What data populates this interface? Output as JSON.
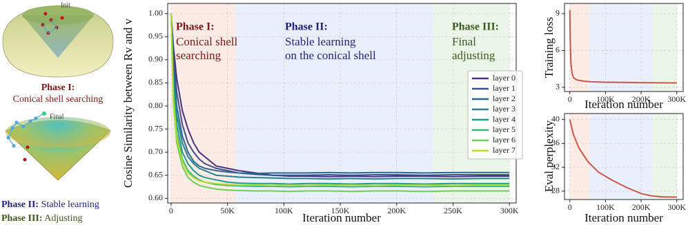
{
  "illustration": {
    "init": "Init",
    "final": "Final",
    "phase1_title": "Phase I:",
    "phase1_text": "Conical shell searching",
    "phase2_title": "Phase II:",
    "phase2_text": "Stable learning",
    "phase3_title": "Phase III:",
    "phase3_text": "Adjusting"
  },
  "chart_data": [
    {
      "type": "line",
      "xlabel": "Iteration number",
      "ylabel": "Cosine Similarity between Rv and v",
      "xlim": [
        -3000,
        306000
      ],
      "ylim": [
        0.59,
        1.022
      ],
      "xticks": [
        0,
        {
          "value": 50000,
          "label": "50K"
        },
        {
          "value": 100000,
          "label": "100K"
        },
        {
          "value": 150000,
          "label": "150K"
        },
        {
          "value": 200000,
          "label": "200K"
        },
        {
          "value": 250000,
          "label": "250K"
        },
        {
          "value": 300000,
          "label": "300K"
        }
      ],
      "yticks": [
        {
          "value": 0.6,
          "label": "0.60"
        },
        0.65,
        {
          "value": 0.7,
          "label": "0.70"
        },
        0.75,
        {
          "value": 0.8,
          "label": "0.80"
        },
        0.85,
        {
          "value": 0.9,
          "label": "0.90"
        },
        0.95,
        {
          "value": 1,
          "label": "1.00"
        }
      ],
      "grid": true,
      "legend": "center right",
      "phases": [
        {
          "title": "Phase I:",
          "lines": [
            "Conical shell",
            "searching"
          ],
          "xrange": [
            0,
            57000
          ],
          "color": "#fdebe6",
          "title_color": "#7a1616"
        },
        {
          "title": "Phase II:",
          "lines": [
            "Stable learning",
            "on the conical shell"
          ],
          "xrange": [
            57000,
            232000
          ],
          "color": "#eaf0fb",
          "title_color": "#1f1f78"
        },
        {
          "title": "Phase III:",
          "lines": [
            "Final",
            "adjusting"
          ],
          "xrange": [
            232000,
            300000
          ],
          "color": "#eaf6e8",
          "title_color": "#3d5a1c"
        }
      ],
      "x": [
        0,
        2000,
        5000,
        10000,
        15000,
        20000,
        25000,
        30000,
        40000,
        50000,
        60000,
        75000,
        90000,
        105000,
        120000,
        140000,
        160000,
        180000,
        200000,
        225000,
        250000,
        275000,
        300000
      ],
      "series": [
        {
          "name": "layer 0",
          "color": "#46327e",
          "values": [
            1.0,
            0.93,
            0.86,
            0.79,
            0.75,
            0.72,
            0.7,
            0.69,
            0.67,
            0.665,
            0.66,
            0.655,
            0.65,
            0.648,
            0.648,
            0.647,
            0.648,
            0.647,
            0.648,
            0.648,
            0.647,
            0.648,
            0.648
          ]
        },
        {
          "name": "layer 1",
          "color": "#3b4f8a",
          "values": [
            1.0,
            0.91,
            0.83,
            0.76,
            0.72,
            0.7,
            0.685,
            0.675,
            0.665,
            0.66,
            0.655,
            0.652,
            0.65,
            0.65,
            0.65,
            0.651,
            0.65,
            0.651,
            0.651,
            0.65,
            0.651,
            0.651,
            0.651
          ]
        },
        {
          "name": "layer 2",
          "color": "#2c688e",
          "values": [
            1.0,
            0.89,
            0.8,
            0.735,
            0.7,
            0.68,
            0.67,
            0.665,
            0.66,
            0.657,
            0.655,
            0.654,
            0.655,
            0.655,
            0.655,
            0.656,
            0.655,
            0.656,
            0.656,
            0.655,
            0.656,
            0.656,
            0.656
          ]
        },
        {
          "name": "layer 3",
          "color": "#25808e",
          "values": [
            1.0,
            0.87,
            0.78,
            0.72,
            0.69,
            0.675,
            0.665,
            0.66,
            0.65,
            0.648,
            0.646,
            0.645,
            0.644,
            0.643,
            0.643,
            0.642,
            0.643,
            0.642,
            0.643,
            0.643,
            0.642,
            0.643,
            0.643
          ]
        },
        {
          "name": "layer 4",
          "color": "#1f9a8a",
          "values": [
            1.0,
            0.85,
            0.76,
            0.7,
            0.675,
            0.66,
            0.65,
            0.645,
            0.64,
            0.635,
            0.633,
            0.632,
            0.632,
            0.631,
            0.632,
            0.632,
            0.631,
            0.632,
            0.632,
            0.631,
            0.632,
            0.632,
            0.632
          ]
        },
        {
          "name": "layer 5",
          "color": "#35b779",
          "values": [
            1.0,
            0.83,
            0.74,
            0.685,
            0.66,
            0.648,
            0.64,
            0.635,
            0.63,
            0.628,
            0.627,
            0.626,
            0.626,
            0.625,
            0.626,
            0.626,
            0.625,
            0.626,
            0.626,
            0.625,
            0.626,
            0.626,
            0.626
          ]
        },
        {
          "name": "layer 6",
          "color": "#6ece58",
          "values": [
            1.0,
            0.81,
            0.72,
            0.67,
            0.645,
            0.635,
            0.628,
            0.625,
            0.62,
            0.618,
            0.617,
            0.616,
            0.616,
            0.615,
            0.616,
            0.616,
            0.615,
            0.616,
            0.616,
            0.615,
            0.616,
            0.616,
            0.616
          ]
        },
        {
          "name": "layer 7",
          "color": "#b5de2b",
          "values": [
            1.0,
            0.82,
            0.73,
            0.68,
            0.655,
            0.645,
            0.638,
            0.635,
            0.632,
            0.63,
            0.629,
            0.629,
            0.628,
            0.629,
            0.628,
            0.629,
            0.629,
            0.628,
            0.629,
            0.629,
            0.628,
            0.629,
            0.629
          ]
        }
      ]
    },
    {
      "type": "line",
      "xlabel": "Iteration number",
      "ylabel": "Training loss",
      "xlim": [
        -15000,
        318000
      ],
      "ylim": [
        2.66,
        9.84
      ],
      "xticks": [
        0,
        {
          "value": 100000,
          "label": "100K"
        },
        {
          "value": 200000,
          "label": "200K"
        },
        {
          "value": 300000,
          "label": "300K"
        }
      ],
      "yticks": [
        3,
        6,
        9
      ],
      "grid": true,
      "phases": [
        {
          "xrange": [
            0,
            55000
          ],
          "color": "#fdebe6"
        },
        {
          "xrange": [
            55000,
            232000
          ],
          "color": "#eaf0fb"
        },
        {
          "xrange": [
            232000,
            300000
          ],
          "color": "#eaf6e8"
        }
      ],
      "x": [
        0,
        1000,
        3000,
        6000,
        10000,
        20000,
        40000,
        60000,
        100000,
        150000,
        200000,
        250000,
        300000
      ],
      "series": [
        {
          "color": "#c8574c",
          "values": [
            9.3,
            7.0,
            5.0,
            4.2,
            3.8,
            3.6,
            3.5,
            3.45,
            3.42,
            3.4,
            3.38,
            3.37,
            3.36
          ]
        }
      ]
    },
    {
      "type": "line",
      "xlabel": "Iteration number",
      "ylabel": "Eval perplexity",
      "xlim": [
        -15000,
        318000
      ],
      "ylim": [
        26.6,
        41
      ],
      "xticks": [
        0,
        {
          "value": 100000,
          "label": "100K"
        },
        {
          "value": 200000,
          "label": "200K"
        },
        {
          "value": 300000,
          "label": "300K"
        }
      ],
      "yticks": [
        28,
        32,
        36,
        40
      ],
      "grid": true,
      "phases": [
        {
          "xrange": [
            0,
            55000
          ],
          "color": "#fdebe6"
        },
        {
          "xrange": [
            55000,
            232000
          ],
          "color": "#eaf0fb"
        },
        {
          "xrange": [
            232000,
            300000
          ],
          "color": "#eaf6e8"
        }
      ],
      "x": [
        0,
        10000,
        25000,
        50000,
        80000,
        120000,
        160000,
        200000,
        230000,
        260000,
        300000
      ],
      "series": [
        {
          "color": "#c8574c",
          "values": [
            40,
            37.5,
            35.3,
            33.0,
            31.2,
            29.8,
            28.6,
            27.6,
            27.2,
            27.05,
            27.0
          ]
        }
      ]
    }
  ]
}
